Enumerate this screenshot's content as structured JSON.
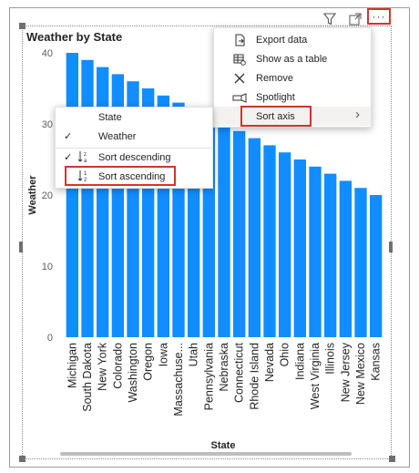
{
  "header": {
    "filter_icon": "filter-icon",
    "focus_icon": "focus-mode-icon",
    "more_label": "···"
  },
  "chart_title": "Weather by State",
  "context_menu": {
    "items": [
      {
        "label": "Export data",
        "icon": "export-icon"
      },
      {
        "label": "Show as a table",
        "icon": "table-icon"
      },
      {
        "label": "Remove",
        "icon": "remove-icon"
      },
      {
        "label": "Spotlight",
        "icon": "spotlight-icon"
      },
      {
        "label": "Sort axis",
        "icon": "",
        "arrow": "›"
      }
    ]
  },
  "sort_submenu": {
    "items": [
      {
        "label": "State",
        "checked": false
      },
      {
        "label": "Weather",
        "checked": true
      },
      {
        "label": "Sort descending",
        "checked": true,
        "sort_icon": "↓ ²/ₐ"
      },
      {
        "label": "Sort ascending",
        "checked": false,
        "sort_icon": "↓ ᵃ/₂"
      }
    ]
  },
  "chart_data": {
    "type": "bar",
    "title": "Weather by State",
    "xlabel": "State",
    "ylabel": "Weather",
    "ylim": [
      0,
      40
    ],
    "yticks": [
      0,
      10,
      20,
      30,
      40
    ],
    "grid": false,
    "bar_color": "#118DFF",
    "categories": [
      "Michigan",
      "South Dakota",
      "New York",
      "Colorado",
      "Washington",
      "Oregon",
      "Iowa",
      "Massachuse...",
      "Utah",
      "Pennsylvania",
      "Nebraska",
      "Connecticut",
      "Rhode Island",
      "Nevada",
      "Ohio",
      "Indiana",
      "West Virginia",
      "Illinois",
      "New Jersey",
      "New Mexico",
      "Kansas"
    ],
    "values": [
      40,
      39,
      38,
      37,
      36,
      35,
      34,
      33,
      32,
      31,
      30,
      29,
      28,
      27,
      26,
      25,
      24,
      23,
      22,
      21,
      20
    ]
  }
}
